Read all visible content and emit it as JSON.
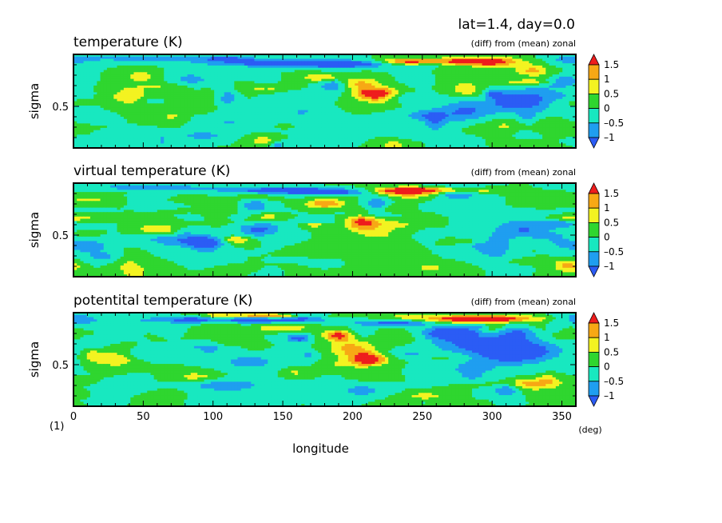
{
  "header": {
    "title": "lat=1.4, day=0.0"
  },
  "footer": {
    "figure_number": "(1)"
  },
  "colors": {
    "levels": [
      "#2b5cf5",
      "#1f9ef0",
      "#18e8c0",
      "#2fd62f",
      "#f3f321",
      "#f7a815",
      "#ee1d1d"
    ],
    "bounds": [
      -1.0,
      -0.5,
      0.0,
      0.5,
      1.0,
      1.5
    ]
  },
  "chart_data": [
    {
      "type": "heatmap",
      "title": "temperature (K)",
      "subtitle": "(diff) from (mean) zonal",
      "xlabel": "",
      "ylabel": "sigma",
      "xlim": [
        0,
        360
      ],
      "ylim": [
        0.1,
        1.0
      ],
      "yticks": [
        {
          "value": 0.5,
          "label": "0.5"
        }
      ],
      "xticks": [],
      "colorbar": {
        "ticks": [
          "1.5",
          "1",
          "0.5",
          "0",
          "–0.5",
          "–1"
        ]
      },
      "seed": 11,
      "features": [
        {
          "lon": 280,
          "sigma": 0.93,
          "amp": 2.2,
          "wx": 32,
          "wy": 0.035
        },
        {
          "lon": 240,
          "sigma": 0.93,
          "amp": 1.6,
          "wx": 20,
          "wy": 0.03
        },
        {
          "lon": 150,
          "sigma": 0.92,
          "amp": -1.6,
          "wx": 55,
          "wy": 0.035
        },
        {
          "lon": 60,
          "sigma": 0.96,
          "amp": -1.0,
          "wx": 45,
          "wy": 0.025
        },
        {
          "lon": 195,
          "sigma": 0.9,
          "amp": -1.2,
          "wx": 30,
          "wy": 0.03
        },
        {
          "lon": 180,
          "sigma": 0.78,
          "amp": 1.3,
          "wx": 14,
          "wy": 0.04
        },
        {
          "lon": 215,
          "sigma": 0.6,
          "amp": 1.4,
          "wx": 14,
          "wy": 0.08
        },
        {
          "lon": 205,
          "sigma": 0.72,
          "amp": 0.9,
          "wx": 12,
          "wy": 0.06
        },
        {
          "lon": 320,
          "sigma": 0.55,
          "amp": -1.5,
          "wx": 28,
          "wy": 0.1
        },
        {
          "lon": 350,
          "sigma": 0.75,
          "amp": -1.1,
          "wx": 12,
          "wy": 0.06
        },
        {
          "lon": 280,
          "sigma": 0.45,
          "amp": -1.0,
          "wx": 20,
          "wy": 0.1
        },
        {
          "lon": 120,
          "sigma": 0.35,
          "amp": -0.9,
          "wx": 25,
          "wy": 0.06
        },
        {
          "lon": 40,
          "sigma": 0.6,
          "amp": 1.0,
          "wx": 14,
          "wy": 0.08
        },
        {
          "lon": 320,
          "sigma": 0.3,
          "amp": 0.9,
          "wx": 25,
          "wy": 0.08
        }
      ]
    },
    {
      "type": "heatmap",
      "title": "virtual temperature (K)",
      "subtitle": "(diff) from (mean) zonal",
      "xlabel": "",
      "ylabel": "sigma",
      "xlim": [
        0,
        360
      ],
      "ylim": [
        0.1,
        1.0
      ],
      "yticks": [
        {
          "value": 0.5,
          "label": "0.5"
        }
      ],
      "xticks": [],
      "colorbar": {
        "ticks": [
          "1.5",
          "1",
          "0.5",
          "0",
          "–0.5",
          "–1"
        ]
      },
      "seed": 23,
      "features": [
        {
          "lon": 270,
          "sigma": 0.93,
          "amp": 2.0,
          "wx": 30,
          "wy": 0.035
        },
        {
          "lon": 235,
          "sigma": 0.93,
          "amp": 1.5,
          "wx": 18,
          "wy": 0.03
        },
        {
          "lon": 150,
          "sigma": 0.93,
          "amp": -1.4,
          "wx": 50,
          "wy": 0.035
        },
        {
          "lon": 50,
          "sigma": 0.96,
          "amp": -1.0,
          "wx": 40,
          "wy": 0.025
        },
        {
          "lon": 190,
          "sigma": 0.91,
          "amp": -1.1,
          "wx": 30,
          "wy": 0.03
        },
        {
          "lon": 180,
          "sigma": 0.8,
          "amp": 1.2,
          "wx": 14,
          "wy": 0.04
        },
        {
          "lon": 210,
          "sigma": 0.6,
          "amp": 1.1,
          "wx": 16,
          "wy": 0.08
        },
        {
          "lon": 330,
          "sigma": 0.55,
          "amp": -1.3,
          "wx": 28,
          "wy": 0.1
        },
        {
          "lon": 300,
          "sigma": 0.4,
          "amp": -0.9,
          "wx": 18,
          "wy": 0.08
        },
        {
          "lon": 80,
          "sigma": 0.45,
          "amp": -0.9,
          "wx": 25,
          "wy": 0.07
        },
        {
          "lon": 60,
          "sigma": 0.55,
          "amp": 1.0,
          "wx": 14,
          "wy": 0.06
        },
        {
          "lon": 355,
          "sigma": 0.2,
          "amp": 1.2,
          "wx": 10,
          "wy": 0.06
        }
      ]
    },
    {
      "type": "heatmap",
      "title": "potentital temperature (K)",
      "subtitle": "(diff) from (mean) zonal",
      "xlabel": "longitude",
      "ylabel": "sigma",
      "xlim": [
        0,
        360
      ],
      "ylim": [
        0.1,
        1.0
      ],
      "yticks": [
        {
          "value": 0.5,
          "label": "0.5"
        }
      ],
      "xticks": [
        "0",
        "50",
        "100",
        "150",
        "200",
        "250",
        "300",
        "350"
      ],
      "xunit": "(deg)",
      "colorbar": {
        "ticks": [
          "1.5",
          "1",
          "0.5",
          "0",
          "–0.5",
          "–1"
        ]
      },
      "seed": 37,
      "features": [
        {
          "lon": 290,
          "sigma": 0.94,
          "amp": 2.4,
          "wx": 40,
          "wy": 0.035
        },
        {
          "lon": 140,
          "sigma": 0.97,
          "amp": 1.5,
          "wx": 30,
          "wy": 0.02
        },
        {
          "lon": 110,
          "sigma": 0.93,
          "amp": -1.5,
          "wx": 60,
          "wy": 0.03
        },
        {
          "lon": 230,
          "sigma": 0.9,
          "amp": -1.4,
          "wx": 25,
          "wy": 0.03
        },
        {
          "lon": 150,
          "sigma": 0.85,
          "amp": 1.0,
          "wx": 20,
          "wy": 0.03
        },
        {
          "lon": 190,
          "sigma": 0.78,
          "amp": 1.8,
          "wx": 12,
          "wy": 0.05
        },
        {
          "lon": 212,
          "sigma": 0.55,
          "amp": 2.0,
          "wx": 12,
          "wy": 0.06
        },
        {
          "lon": 200,
          "sigma": 0.65,
          "amp": 1.2,
          "wx": 16,
          "wy": 0.1
        },
        {
          "lon": 310,
          "sigma": 0.65,
          "amp": -1.8,
          "wx": 35,
          "wy": 0.14
        },
        {
          "lon": 270,
          "sigma": 0.8,
          "amp": -1.2,
          "wx": 25,
          "wy": 0.06
        },
        {
          "lon": 30,
          "sigma": 0.55,
          "amp": 1.0,
          "wx": 14,
          "wy": 0.07
        },
        {
          "lon": 110,
          "sigma": 0.3,
          "amp": -0.9,
          "wx": 25,
          "wy": 0.06
        },
        {
          "lon": 330,
          "sigma": 0.3,
          "amp": 0.8,
          "wx": 20,
          "wy": 0.06
        }
      ]
    }
  ]
}
